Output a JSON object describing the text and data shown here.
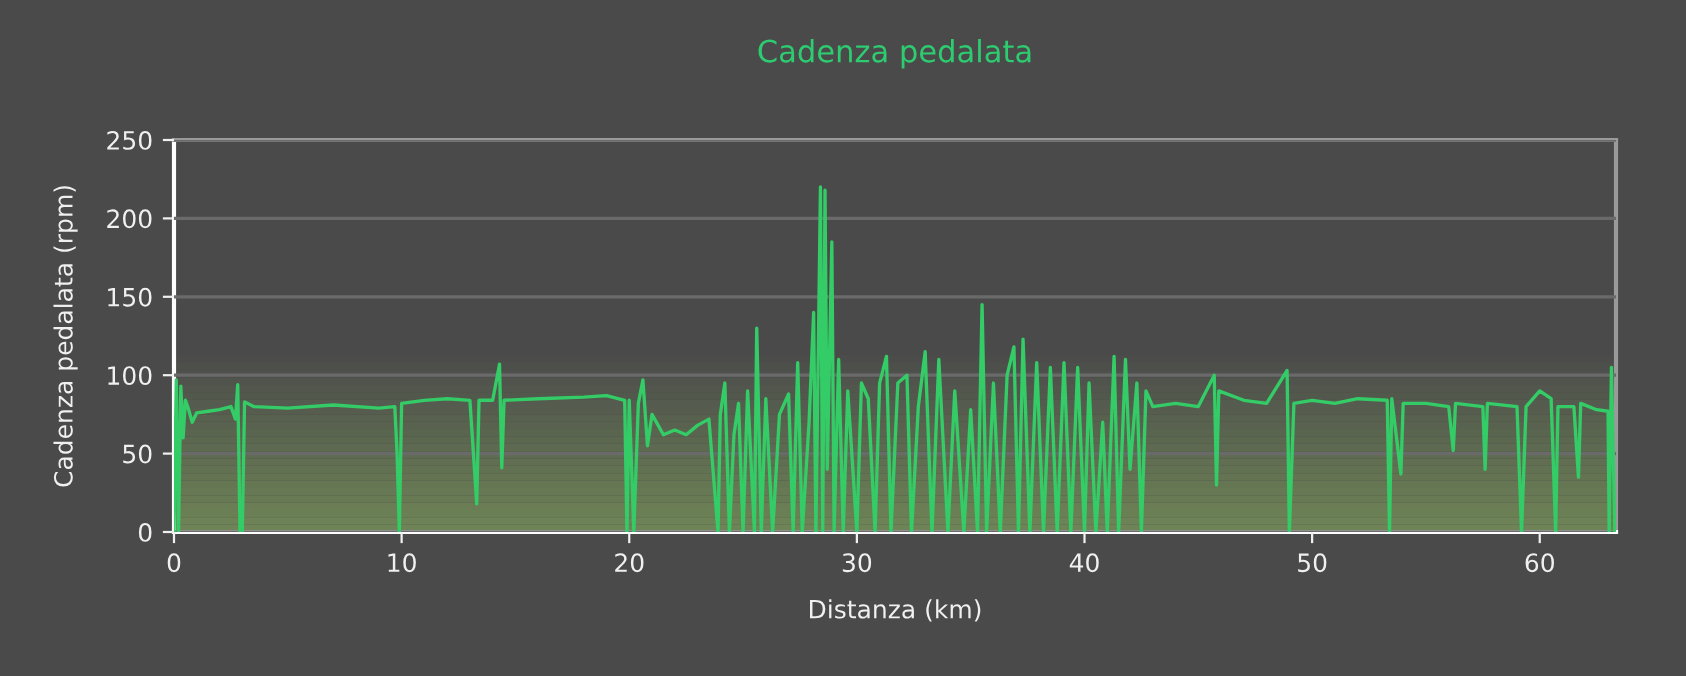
{
  "chart_data": {
    "type": "line",
    "title": "Cadenza pedalata",
    "xlabel": "Distanza (km)",
    "ylabel": "Cadenza pedalata (rpm)",
    "xlim": [
      0,
      63.35
    ],
    "ylim": [
      0,
      250
    ],
    "xticks": [
      0,
      10,
      20,
      30,
      40,
      50,
      60
    ],
    "yticks": [
      0,
      50,
      100,
      150,
      200,
      250
    ],
    "grid": "y",
    "legend": false,
    "marker": "none",
    "line_style": "solid",
    "series": [
      {
        "color": "#33cc66",
        "x": [
          0.0,
          0.1,
          0.2,
          0.3,
          0.4,
          0.5,
          0.6,
          0.8,
          1.0,
          1.5,
          2.0,
          2.5,
          2.7,
          2.8,
          2.9,
          3.0,
          3.1,
          3.5,
          5.0,
          7.0,
          9.0,
          9.7,
          9.8,
          9.9,
          10.0,
          11.0,
          12.0,
          13.0,
          13.3,
          13.4,
          14.0,
          14.3,
          14.4,
          14.5,
          16.0,
          18.0,
          19.0,
          19.8,
          19.9,
          20.0,
          20.2,
          20.4,
          20.6,
          20.8,
          21.0,
          21.5,
          22.0,
          22.5,
          23.0,
          23.5,
          23.9,
          24.0,
          24.2,
          24.4,
          24.6,
          24.8,
          25.0,
          25.2,
          25.5,
          25.6,
          25.8,
          26.0,
          26.3,
          26.6,
          27.0,
          27.2,
          27.4,
          27.6,
          27.9,
          28.1,
          28.2,
          28.4,
          28.5,
          28.6,
          28.7,
          28.9,
          29.0,
          29.2,
          29.4,
          29.6,
          30.0,
          30.2,
          30.5,
          30.8,
          31.0,
          31.3,
          31.5,
          31.8,
          32.2,
          32.4,
          32.7,
          33.0,
          33.3,
          33.6,
          34.0,
          34.3,
          34.7,
          35.0,
          35.3,
          35.5,
          35.7,
          36.0,
          36.3,
          36.6,
          36.9,
          37.1,
          37.3,
          37.6,
          37.9,
          38.2,
          38.5,
          38.8,
          39.1,
          39.4,
          39.7,
          40.0,
          40.2,
          40.5,
          40.8,
          41.0,
          41.3,
          41.5,
          41.8,
          42.0,
          42.3,
          42.5,
          42.7,
          43.0,
          44.0,
          45.0,
          45.7,
          45.8,
          45.9,
          47.0,
          48.0,
          48.9,
          49.0,
          49.2,
          50.0,
          51.0,
          52.0,
          53.3,
          53.4,
          53.5,
          53.9,
          54.0,
          55.0,
          56.0,
          56.2,
          56.3,
          57.5,
          57.6,
          57.7,
          59.0,
          59.2,
          59.4,
          60.0,
          60.5,
          60.7,
          60.8,
          61.5,
          61.7,
          61.8,
          62.5,
          63.0,
          63.05,
          63.15,
          63.3
        ],
        "values": [
          0,
          97,
          0,
          93,
          60,
          84,
          80,
          70,
          76,
          77,
          78,
          80,
          72,
          94,
          0,
          0,
          83,
          80,
          79,
          81,
          79,
          80,
          50,
          0,
          82,
          84,
          85,
          84,
          18,
          84,
          84,
          107,
          41,
          84,
          85,
          86,
          87,
          84,
          0,
          84,
          0,
          82,
          97,
          55,
          75,
          62,
          65,
          62,
          68,
          72,
          0,
          75,
          95,
          0,
          62,
          82,
          0,
          90,
          0,
          130,
          0,
          85,
          0,
          75,
          88,
          0,
          108,
          0,
          70,
          140,
          0,
          220,
          0,
          218,
          40,
          185,
          0,
          110,
          0,
          90,
          0,
          95,
          85,
          0,
          95,
          112,
          0,
          95,
          100,
          0,
          80,
          115,
          0,
          110,
          0,
          90,
          0,
          78,
          0,
          145,
          0,
          95,
          0,
          100,
          118,
          0,
          123,
          0,
          108,
          0,
          105,
          0,
          108,
          0,
          105,
          0,
          95,
          0,
          70,
          0,
          112,
          0,
          110,
          40,
          95,
          0,
          90,
          80,
          82,
          80,
          100,
          30,
          90,
          84,
          82,
          103,
          0,
          82,
          84,
          82,
          85,
          84,
          0,
          85,
          37,
          82,
          82,
          80,
          52,
          82,
          80,
          40,
          82,
          80,
          0,
          80,
          90,
          85,
          0,
          80,
          80,
          35,
          82,
          78,
          77,
          0,
          105,
          0
        ]
      }
    ]
  }
}
